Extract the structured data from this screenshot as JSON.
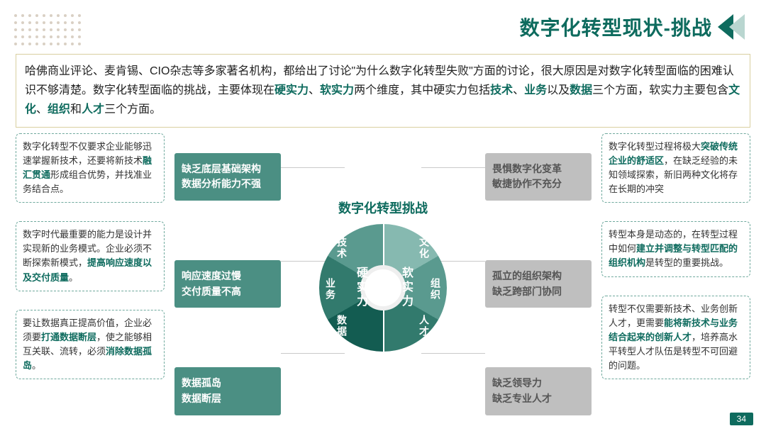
{
  "colors": {
    "teal": "#0e6b5e",
    "teal_light": "#86aca4",
    "teal_mid": "#3f8d81",
    "chev_light": "#b9d6d0",
    "border_yellow": "#d9cfa0",
    "dot": "#d9d0c4",
    "text": "#222222",
    "grey_line": "#c9c9c9"
  },
  "header": {
    "title": "数字化转型现状-挑战"
  },
  "page_number": "34",
  "intro": {
    "plain1": "哈佛商业评论、麦肯锡、CIO杂志等多家著名机构，都给出了讨论\"为什么数字化转型失败\"方面的讨论，很大原因是对数字化转型面临的困难认识不够清楚。数字化转型面临的挑战，主要体现在",
    "b1": "硬实力",
    "sep1": "、",
    "b2": "软实力",
    "plain2": "两个维度，其中硬实力包括",
    "b3": "技术",
    "b4": "业务",
    "plain3": "以及",
    "b5": "数据",
    "plain4": "三个方面，软实力主要包含",
    "b6": "文化",
    "b7": "组织",
    "plain5": "和",
    "b8": "人才",
    "plain6": "三个方面。"
  },
  "center": {
    "title": "数字化转型挑战",
    "hard": "硬实力",
    "soft": "软实力",
    "segments": [
      "技术",
      "业务",
      "数据",
      "文化",
      "组织",
      "人才"
    ],
    "seg_colors_left": [
      "#5a9a8f",
      "#327a6d",
      "#135c51"
    ],
    "seg_colors_right": [
      "#86b9b0",
      "#5a9a8f",
      "#327a6d"
    ]
  },
  "left_outer": [
    {
      "pre": "数字化转型不仅要求企业能够迅速掌握新技术，还要将新技术",
      "b": "融汇贯通",
      "post": "形成组合优势，并找准业务结合点。"
    },
    {
      "pre": "数字时代最重要的能力是设计并实现新的业务模式。企业必须不断探索新模式，",
      "b": "提高响应速度以及交付质量",
      "post": "。"
    },
    {
      "pre": "要让数据真正提高价值，企业必须要",
      "b": "打通数据断层",
      "post": "，使之能够相互关联、流转，必须",
      "b2": "消除数据孤岛",
      "post2": "。"
    }
  ],
  "left_mid": [
    "缺乏底层基础架构\n数据分析能力不强",
    "响应速度过慢\n交付质量不高",
    "数据孤岛\n数据断层"
  ],
  "right_mid": [
    "畏惧数字化变革\n敏捷协作不充分",
    "孤立的组织架构\n缺乏跨部门协同",
    "缺乏领导力\n缺乏专业人才"
  ],
  "right_outer": [
    {
      "pre": "数字化转型过程将极大",
      "b": "突破传统企业的舒适区",
      "post": "，在缺乏经验的未知领域探索，新旧两种文化将存在长期的冲突"
    },
    {
      "pre": "转型本身是动态的，在转型过程中如何",
      "b": "建立并调整与转型匹配的组织机构",
      "post": "是转型的重要挑战。"
    },
    {
      "pre": "转型不仅需要新技术、业务创新人才，更需要",
      "b": "能将新技术与业务结合起来的创新人才",
      "post": "，培养高水平转型人才队伍是转型不可回避的问题。"
    }
  ],
  "styling": {
    "outer_card_border_color": "#6fa99d",
    "outer_card_bold_color": "#0e6b5e",
    "mid_card_bg": [
      "#4b8f83",
      "#4b8f83",
      "#4b8f83"
    ],
    "right_mid_bg": "#bfbfbf",
    "right_mid_text": "#555555"
  }
}
